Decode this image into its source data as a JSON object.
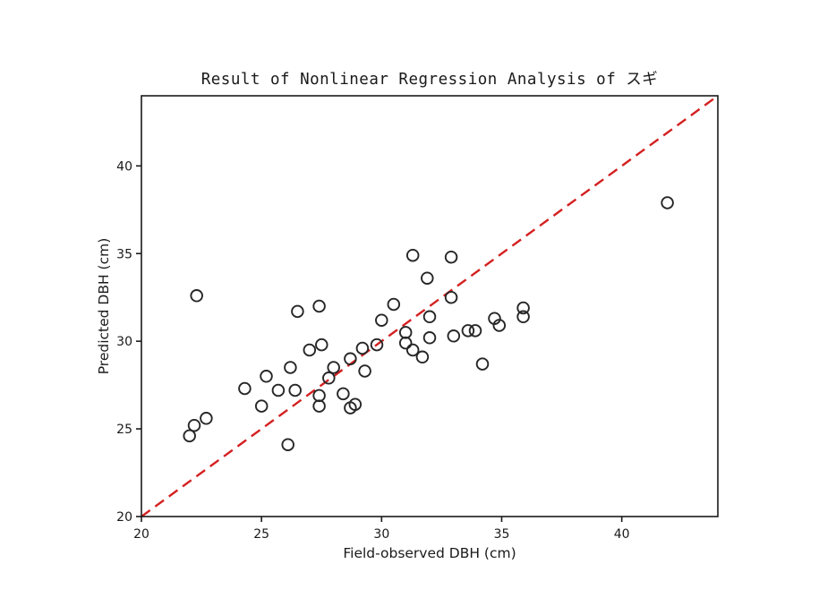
{
  "figure": {
    "title": "Result of Nonlinear Regression Analysis of スギ",
    "xlabel": "Field-observed DBH (cm)",
    "ylabel": "Predicted DBH (cm)"
  },
  "colors": {
    "background": "#ffffff",
    "axis": "#1a1a1a",
    "tick_text": "#1a1a1a",
    "marker_edge": "#262626",
    "identity_line": "#d42020"
  },
  "chart_data": {
    "type": "scatter",
    "title": "Result of Nonlinear Regression Analysis of スギ",
    "xlabel": "Field-observed DBH (cm)",
    "ylabel": "Predicted DBH (cm)",
    "xlim": [
      20,
      44
    ],
    "ylim": [
      20,
      44
    ],
    "xticks": [
      20,
      25,
      30,
      35,
      40
    ],
    "yticks": [
      20,
      25,
      30,
      35,
      40
    ],
    "grid": false,
    "legend": "none",
    "series": [
      {
        "name": "predicted-vs-observed",
        "marker": "open-circle",
        "marker_radius": 6.3,
        "points": [
          [
            22.0,
            24.6
          ],
          [
            22.2,
            25.2
          ],
          [
            22.3,
            32.6
          ],
          [
            22.7,
            25.6
          ],
          [
            24.3,
            27.3
          ],
          [
            25.0,
            26.3
          ],
          [
            25.2,
            28.0
          ],
          [
            25.7,
            27.2
          ],
          [
            26.1,
            24.1
          ],
          [
            26.2,
            28.5
          ],
          [
            26.4,
            27.2
          ],
          [
            26.5,
            31.7
          ],
          [
            27.0,
            29.5
          ],
          [
            27.4,
            26.3
          ],
          [
            27.4,
            26.9
          ],
          [
            27.4,
            32.0
          ],
          [
            27.5,
            29.8
          ],
          [
            27.8,
            27.9
          ],
          [
            28.0,
            28.5
          ],
          [
            28.4,
            27.0
          ],
          [
            28.7,
            26.2
          ],
          [
            28.7,
            29.0
          ],
          [
            28.9,
            26.4
          ],
          [
            29.2,
            29.6
          ],
          [
            29.3,
            28.3
          ],
          [
            29.8,
            29.8
          ],
          [
            30.0,
            31.2
          ],
          [
            30.5,
            32.1
          ],
          [
            31.0,
            29.9
          ],
          [
            31.0,
            30.5
          ],
          [
            31.3,
            29.5
          ],
          [
            31.3,
            34.9
          ],
          [
            31.7,
            29.1
          ],
          [
            31.9,
            33.6
          ],
          [
            32.0,
            30.2
          ],
          [
            32.0,
            31.4
          ],
          [
            32.9,
            32.5
          ],
          [
            32.9,
            34.8
          ],
          [
            33.0,
            30.3
          ],
          [
            33.6,
            30.6
          ],
          [
            33.9,
            30.6
          ],
          [
            34.2,
            28.7
          ],
          [
            34.7,
            31.3
          ],
          [
            34.9,
            30.9
          ],
          [
            35.9,
            31.4
          ],
          [
            35.9,
            31.9
          ],
          [
            41.9,
            37.9
          ]
        ]
      }
    ],
    "reference_line": {
      "name": "identity-line",
      "style": "dashed",
      "from": [
        20,
        20
      ],
      "to": [
        44,
        44
      ]
    }
  }
}
